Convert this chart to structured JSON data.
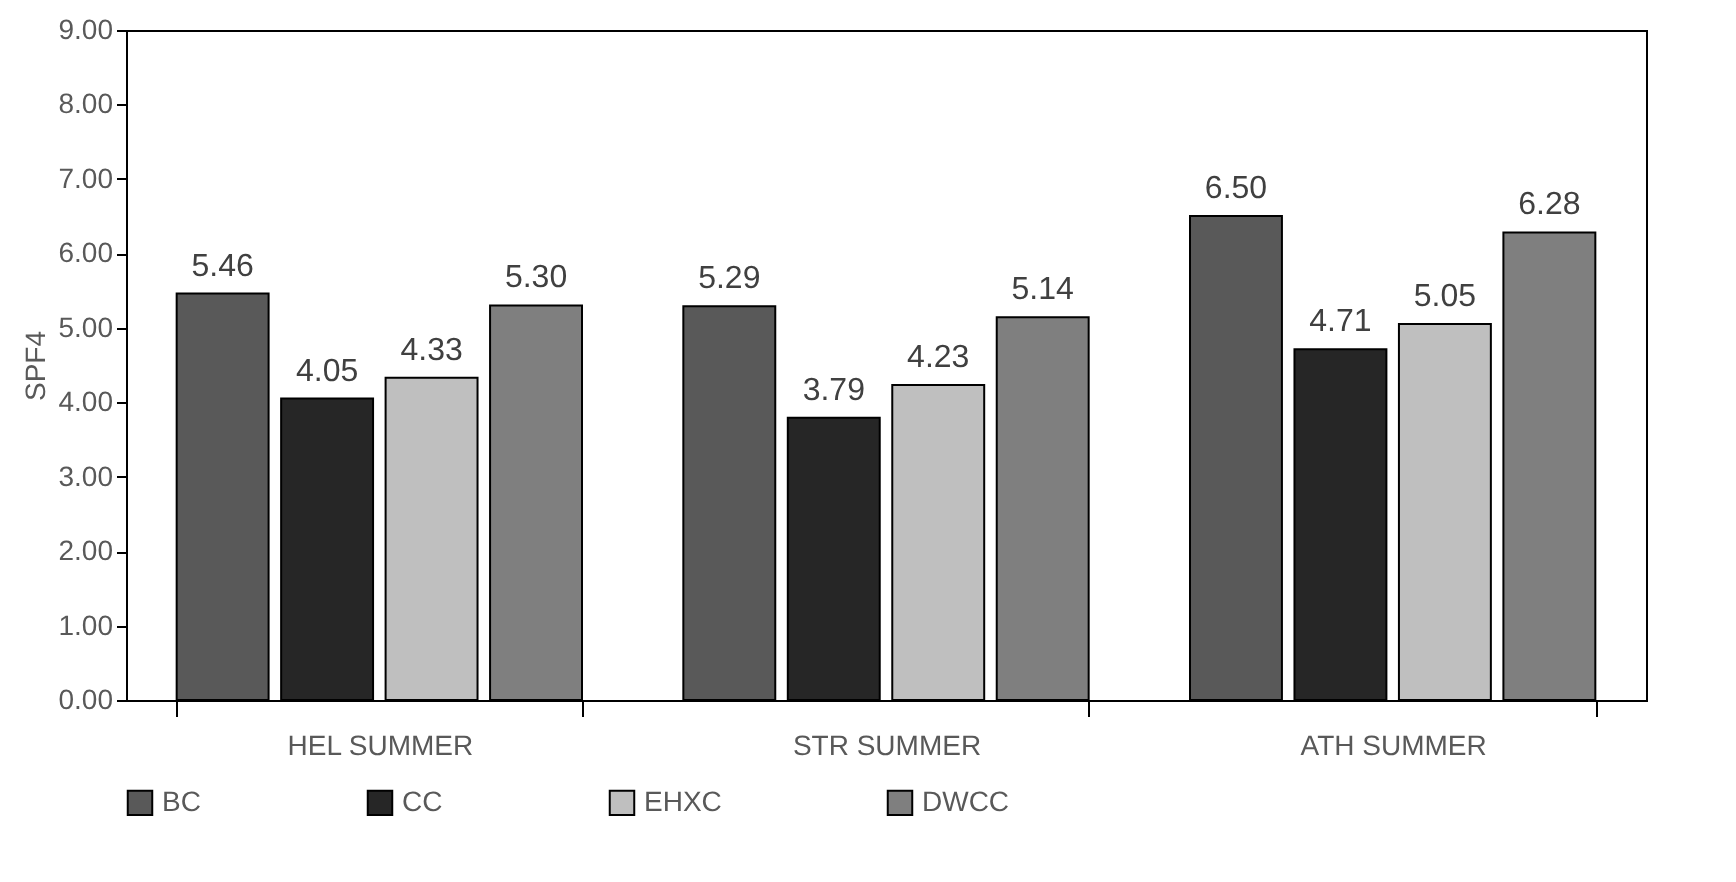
{
  "chart_data": {
    "type": "bar",
    "ylabel": "SPF4",
    "categories": [
      "HEL SUMMER",
      "STR SUMMER",
      "ATH SUMMER"
    ],
    "series": [
      {
        "name": "BC",
        "color": "#595959",
        "values": [
          5.46,
          5.29,
          6.5
        ],
        "value_labels": [
          "5.46",
          "5.29",
          "6.50"
        ]
      },
      {
        "name": "CC",
        "color": "#262626",
        "values": [
          4.05,
          3.79,
          4.71
        ],
        "value_labels": [
          "4.05",
          "3.79",
          "4.71"
        ]
      },
      {
        "name": "EHXC",
        "color": "#bfbfbf",
        "values": [
          4.33,
          4.23,
          5.05
        ],
        "value_labels": [
          "4.33",
          "4.23",
          "5.05"
        ]
      },
      {
        "name": "DWCC",
        "color": "#7f7f7f",
        "values": [
          5.3,
          5.14,
          6.28
        ],
        "value_labels": [
          "5.30",
          "5.14",
          "6.28"
        ]
      }
    ],
    "ylim": [
      0,
      9
    ],
    "yticks": [
      {
        "value": 0,
        "label": "0.00"
      },
      {
        "value": 1,
        "label": "1.00"
      },
      {
        "value": 2,
        "label": "2.00"
      },
      {
        "value": 3,
        "label": "3.00"
      },
      {
        "value": 4,
        "label": "4.00"
      },
      {
        "value": 5,
        "label": "5.00"
      },
      {
        "value": 6,
        "label": "6.00"
      },
      {
        "value": 7,
        "label": "7.00"
      },
      {
        "value": 8,
        "label": "8.00"
      },
      {
        "value": 9,
        "label": "9.00"
      }
    ],
    "data_labels": true,
    "legend": "bottom"
  }
}
